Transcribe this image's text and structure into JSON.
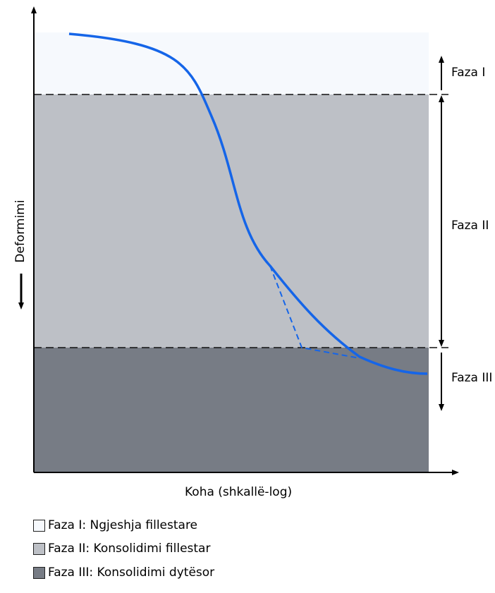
{
  "axes": {
    "y_label": "Deformimi",
    "x_label": "Koha (shkallë-log)"
  },
  "phases": [
    {
      "label": "Faza I",
      "color": "#f6f9fd"
    },
    {
      "label": "Faza II",
      "color": "#bdc0c6"
    },
    {
      "label": "Faza III",
      "color": "#777c85"
    }
  ],
  "curve_color": "#1565e8",
  "legend": [
    {
      "text": "Faza I: Ngjeshja fillestare",
      "color": "#f6f9fd"
    },
    {
      "text": "Faza II: Konsolidimi fillestar",
      "color": "#bdc0c6"
    },
    {
      "text": "Faza III: Konsolidimi dytësor",
      "color": "#777c85"
    }
  ]
}
